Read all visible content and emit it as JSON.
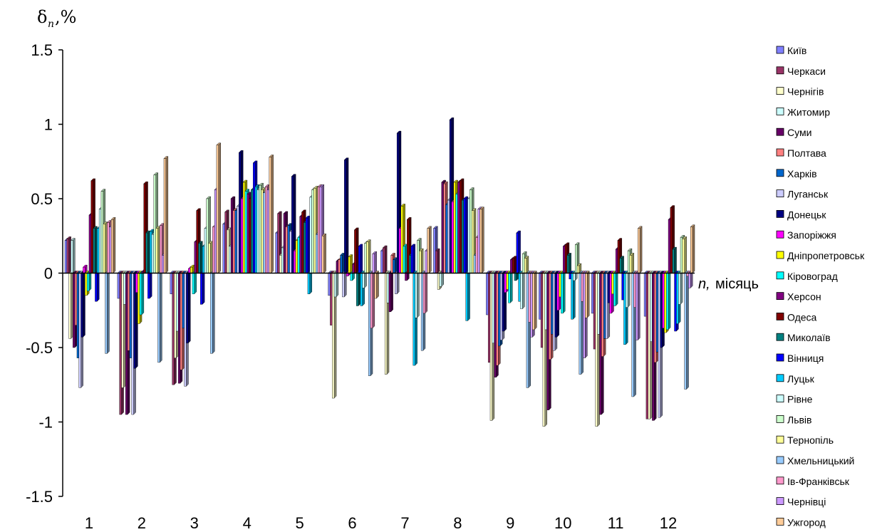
{
  "chart_data": {
    "type": "bar",
    "ylabel": "δ",
    "ylabel_sub": "n",
    "ylabel_unit": ",%",
    "xlabel": "n,",
    "xlabel_unit": "місяць",
    "ylim": [
      -1.5,
      1.5
    ],
    "yticks": [
      1.5,
      1,
      0.5,
      0,
      -0.5,
      -1,
      -1.5
    ],
    "ytick_labels": [
      "1.5",
      "1",
      "0.5",
      "0",
      "-0.5",
      "-1",
      "-1.5"
    ],
    "categories": [
      "1",
      "2",
      "3",
      "4",
      "5",
      "6",
      "7",
      "8",
      "9",
      "10",
      "11",
      "12"
    ],
    "grid": false,
    "legend_position": "right",
    "series": [
      {
        "name": "Київ",
        "color": "#8080FF",
        "values": [
          0.22,
          -0.17,
          -0.14,
          0.33,
          0.27,
          -0.15,
          0.15,
          0.3,
          -0.28,
          -0.31,
          -0.27,
          -0.29
        ]
      },
      {
        "name": "Черкаси",
        "color": "#993366",
        "values": [
          0.23,
          -0.95,
          -0.75,
          0.41,
          0.4,
          -0.35,
          0.17,
          0.15,
          -0.6,
          -0.5,
          -0.51,
          -0.98
        ]
      },
      {
        "name": "Чернігів",
        "color": "#FFFFCC",
        "values": [
          -0.44,
          -0.77,
          -0.57,
          0.29,
          0.12,
          -0.84,
          -0.68,
          -0.11,
          -0.99,
          -1.03,
          -1.03,
          -0.98
        ]
      },
      {
        "name": "Житомир",
        "color": "#CCFFFF",
        "values": [
          0.22,
          -0.21,
          -0.39,
          0.18,
          0.17,
          -0.16,
          -0.2,
          -0.09,
          -0.47,
          -0.38,
          -0.41,
          -0.46
        ]
      },
      {
        "name": "Суми",
        "color": "#660066",
        "values": [
          -0.5,
          -0.95,
          -0.74,
          0.5,
          0.4,
          0.08,
          -0.26,
          0.61,
          -0.7,
          -0.92,
          -0.95,
          -0.99
        ]
      },
      {
        "name": "Полтава",
        "color": "#FF8080",
        "values": [
          -0.35,
          -0.52,
          -0.65,
          0.42,
          0.31,
          0.09,
          0.12,
          0.6,
          -0.62,
          -0.58,
          -0.56,
          -0.6
        ]
      },
      {
        "name": "Харків",
        "color": "#0066CC",
        "values": [
          -0.57,
          -0.57,
          -0.37,
          0.42,
          0.32,
          0.12,
          0.09,
          0.46,
          -0.49,
          -0.41,
          -0.44,
          -0.53
        ]
      },
      {
        "name": "Луганськ",
        "color": "#CCCCFF",
        "values": [
          -0.77,
          -0.95,
          -0.76,
          0.45,
          0.28,
          -0.16,
          -0.14,
          0.49,
          -0.45,
          -0.52,
          -0.44,
          -0.97
        ]
      },
      {
        "name": "Донецьк",
        "color": "#000080",
        "values": [
          -0.43,
          -0.64,
          -0.47,
          0.81,
          0.65,
          0.76,
          0.94,
          1.03,
          -0.39,
          -0.43,
          -0.2,
          -0.5
        ]
      },
      {
        "name": "Запоріжжя",
        "color": "#FF00FF",
        "values": [
          0.04,
          -0.13,
          0.03,
          0.5,
          0.15,
          -0.02,
          0.3,
          0.48,
          -0.13,
          -0.25,
          -0.27,
          -0.37
        ]
      },
      {
        "name": "Дніпропетровськ",
        "color": "#FFFF00",
        "values": [
          -0.15,
          -0.34,
          0.04,
          0.61,
          0.22,
          0.11,
          0.45,
          0.61,
          -0.11,
          -0.16,
          -0.14,
          -0.4
        ]
      },
      {
        "name": "Кіровоград",
        "color": "#00FFFF",
        "values": [
          -0.12,
          -0.28,
          -0.14,
          0.55,
          0.24,
          -0.05,
          0.18,
          0.53,
          -0.2,
          -0.27,
          -0.22,
          -0.38
        ]
      },
      {
        "name": "Херсон",
        "color": "#800080",
        "values": [
          0.39,
          0.01,
          0.21,
          0.53,
          0.38,
          0.06,
          -0.05,
          0.61,
          0.09,
          0.18,
          0.16,
          0.36
        ]
      },
      {
        "name": "Одеса",
        "color": "#800000",
        "values": [
          0.62,
          0.6,
          0.42,
          0.5,
          0.41,
          0.29,
          0.36,
          0.62,
          0.1,
          0.19,
          0.22,
          0.44
        ]
      },
      {
        "name": "Миколаїв",
        "color": "#008080",
        "values": [
          0.3,
          0.27,
          0.2,
          0.56,
          0.34,
          -0.22,
          0.12,
          0.49,
          -0.05,
          0.12,
          0.1,
          0.16
        ]
      },
      {
        "name": "Вінниця",
        "color": "#0000FF",
        "values": [
          -0.19,
          -0.17,
          -0.21,
          0.74,
          0.37,
          0.18,
          0.18,
          0.5,
          0.27,
          -0.04,
          -0.18,
          -0.39
        ]
      },
      {
        "name": "Луцьк",
        "color": "#00CCFF",
        "values": [
          0.3,
          0.28,
          0.18,
          0.58,
          -0.14,
          -0.22,
          -0.62,
          -0.32,
          -0.19,
          -0.31,
          -0.48,
          -0.34
        ]
      },
      {
        "name": "Рівне",
        "color": "#CCFFFF",
        "values": [
          0.43,
          0.26,
          0.3,
          0.56,
          0.51,
          -0.1,
          -0.3,
          0.5,
          -0.24,
          -0.05,
          -0.23,
          -0.21
        ]
      },
      {
        "name": "Львів",
        "color": "#CCFFCC",
        "values": [
          0.55,
          0.66,
          0.5,
          0.59,
          0.56,
          0.2,
          0.22,
          0.56,
          0.13,
          0.19,
          0.15,
          0.24
        ]
      },
      {
        "name": "Тернопіль",
        "color": "#FFFF99",
        "values": [
          0.33,
          0.3,
          0.2,
          0.56,
          0.57,
          0.21,
          0.15,
          0.42,
          0.1,
          0.05,
          0.12,
          0.23
        ]
      },
      {
        "name": "Хмельницький",
        "color": "#99CCFF",
        "values": [
          -0.54,
          -0.6,
          -0.54,
          0.54,
          0.26,
          -0.69,
          -0.52,
          0.12,
          -0.77,
          -0.68,
          -0.83,
          -0.78
        ]
      },
      {
        "name": "Ів-Франківськ",
        "color": "#FF99CC",
        "values": [
          0.34,
          0.32,
          0.31,
          0.58,
          0.58,
          -0.37,
          -0.27,
          0.24,
          -0.33,
          -0.19,
          -0.23,
          -0.02
        ]
      },
      {
        "name": "Чернівці",
        "color": "#CC99FF",
        "values": [
          0.31,
          0.12,
          0.56,
          0.56,
          0.58,
          0.13,
          0.15,
          0.43,
          -0.43,
          -0.57,
          -0.45,
          -0.1
        ]
      },
      {
        "name": "Ужгород",
        "color": "#FFCC99",
        "values": [
          0.36,
          0.77,
          0.86,
          0.78,
          0.25,
          -0.17,
          0.3,
          0.43,
          -0.38,
          -0.3,
          0.3,
          0.31
        ]
      }
    ]
  }
}
